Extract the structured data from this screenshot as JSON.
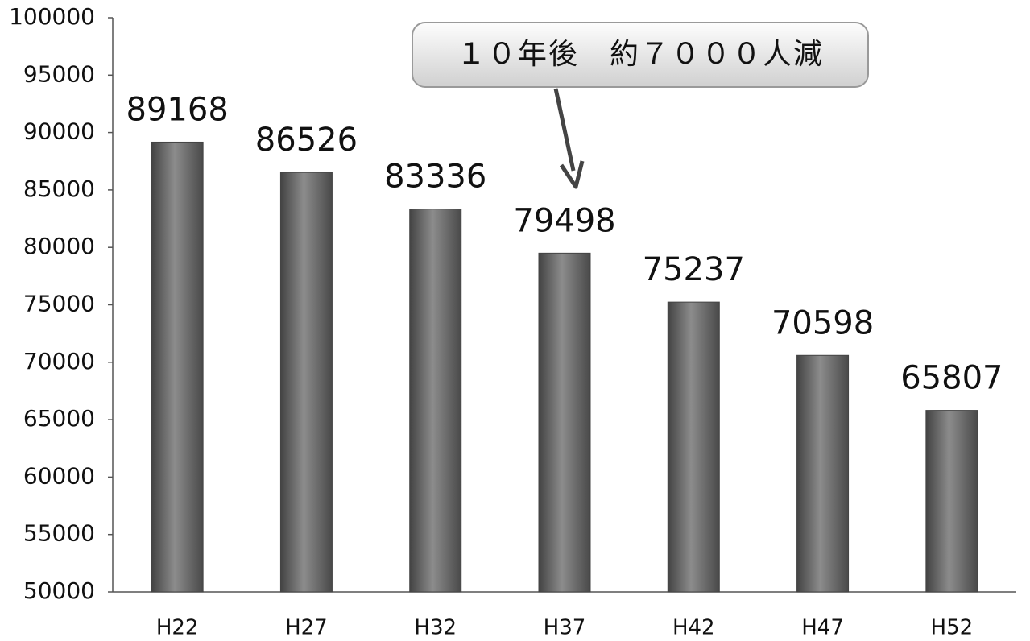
{
  "chart_data": {
    "type": "bar",
    "annotation": "１０年後　約７０００人減",
    "categories": [
      "H22",
      "H27",
      "H32",
      "H37",
      "H42",
      "H47",
      "H52"
    ],
    "values": [
      89168,
      86526,
      83336,
      79498,
      75237,
      70598,
      65807
    ],
    "color": "#7a7a7a",
    "ylim": [
      50000,
      100000
    ],
    "yticks": [
      50000,
      55000,
      60000,
      65000,
      70000,
      75000,
      80000,
      85000,
      90000,
      95000,
      100000
    ],
    "grid": false
  }
}
